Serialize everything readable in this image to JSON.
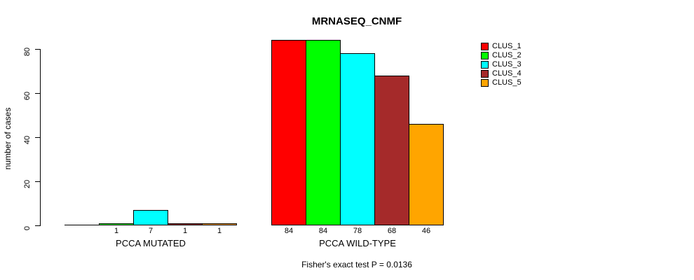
{
  "title": "MRNASEQ_CNMF",
  "footer": "Fisher's exact test P = 0.0136",
  "y_axis": {
    "label": "number of cases",
    "ticks": [
      "0",
      "20",
      "40",
      "60",
      "80"
    ]
  },
  "legend": {
    "items": [
      {
        "label": "CLUS_1",
        "color": "#FF0000"
      },
      {
        "label": "CLUS_2",
        "color": "#00FF00"
      },
      {
        "label": "CLUS_3",
        "color": "#00FFFF"
      },
      {
        "label": "CLUS_4",
        "color": "#A52A2A"
      },
      {
        "label": "CLUS_5",
        "color": "#FFA500"
      }
    ]
  },
  "chart_data": {
    "type": "bar",
    "title": "MRNASEQ_CNMF",
    "xlabel": "",
    "ylabel": "number of cases",
    "ylim": [
      0,
      80
    ],
    "yticks": [
      0,
      20,
      40,
      60,
      80
    ],
    "grid": false,
    "legend_position": "right",
    "categories": [
      "PCCA MUTATED",
      "PCCA WILD-TYPE"
    ],
    "series": [
      {
        "name": "CLUS_1",
        "color": "#FF0000",
        "values": [
          0,
          84
        ]
      },
      {
        "name": "CLUS_2",
        "color": "#00FF00",
        "values": [
          1,
          84
        ]
      },
      {
        "name": "CLUS_3",
        "color": "#00FFFF",
        "values": [
          7,
          78
        ]
      },
      {
        "name": "CLUS_4",
        "color": "#A52A2A",
        "values": [
          1,
          68
        ]
      },
      {
        "name": "CLUS_5",
        "color": "#FFA500",
        "values": [
          1,
          46
        ]
      }
    ],
    "bar_value_labels_shown": true,
    "zero_bars_unlabeled": true,
    "annotation": "Fisher's exact test P = 0.0136"
  }
}
